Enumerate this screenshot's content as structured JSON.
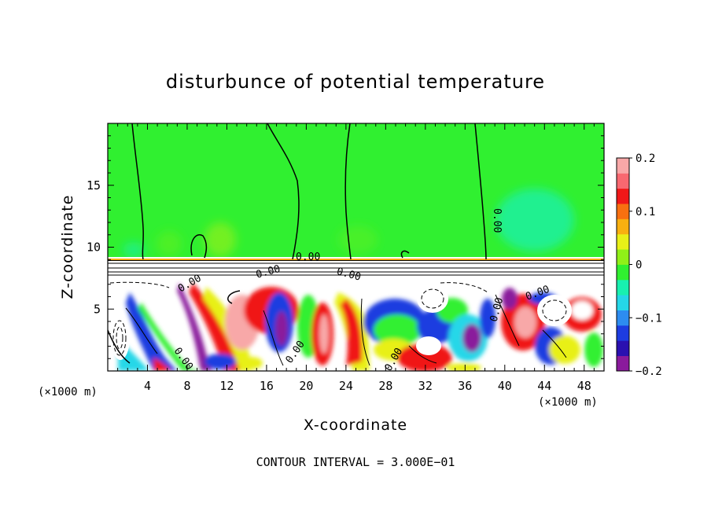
{
  "chart_data": {
    "type": "heatmap",
    "title": "disturbunce of potential temperature",
    "xlabel": "X-coordinate",
    "ylabel": "Z-coordinate",
    "x_unit": "(×1000 m)",
    "xlim": [
      0,
      50
    ],
    "ylim": [
      0,
      20
    ],
    "x_ticks": [
      "4",
      "8",
      "12",
      "16",
      "20",
      "24",
      "28",
      "32",
      "36",
      "40",
      "44",
      "48"
    ],
    "y_ticks": [
      "5",
      "10",
      "15"
    ],
    "colorbar": {
      "range": [
        -0.2,
        0.2
      ],
      "tick_labels": [
        "0.2",
        "0.1",
        "0",
        "−0.1",
        "−0.2"
      ],
      "colors": [
        "#8a1a9c",
        "#2a10b0",
        "#1d3ce0",
        "#2d8cf0",
        "#25d7e8",
        "#18f0b0",
        "#30f030",
        "#90f018",
        "#e8f018",
        "#f8b010",
        "#f87010",
        "#f01818",
        "#f86870",
        "#f8a8a8"
      ]
    },
    "contour_labels": [
      "0.00",
      "0.00",
      "0.00",
      "0.00",
      "0.00",
      "0.00",
      "0.00",
      "0.00",
      "0.00",
      "0.00"
    ],
    "footer": "CONTOUR INTERVAL = 3.000E−01"
  }
}
